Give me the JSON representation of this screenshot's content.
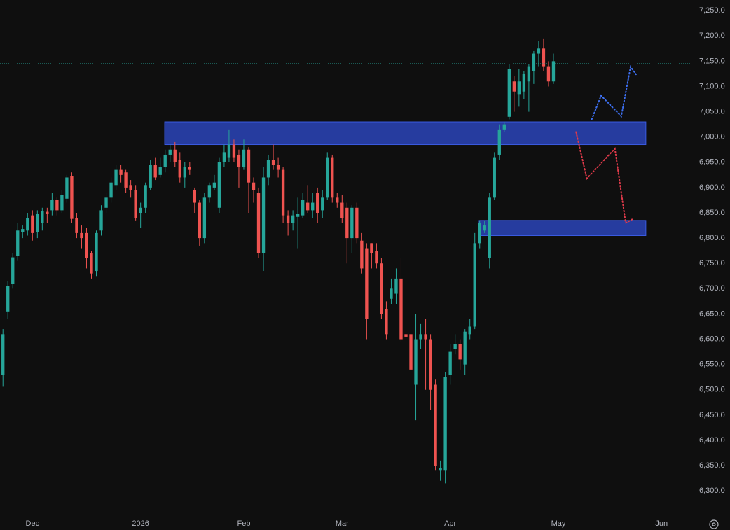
{
  "chart_data": {
    "type": "candlestick",
    "up_color": "#26a69a",
    "down_color": "#ef5350",
    "open": [
      6530,
      6655,
      6710,
      6765,
      6812,
      6815,
      6845,
      6812,
      6830,
      6852,
      6855,
      6875,
      6855,
      6878,
      6922,
      6840,
      6810,
      6810,
      6770,
      6735,
      6815,
      6860,
      6880,
      6905,
      6935,
      6930,
      6905,
      6895,
      6850,
      6860,
      6900,
      6945,
      6925,
      6940,
      6965,
      6975,
      6955,
      6920,
      6940,
      6895,
      6870,
      6800,
      6880,
      6900,
      6860,
      6950,
      6960,
      6985,
      6965,
      6940,
      6975,
      6910,
      6890,
      6770,
      6920,
      6955,
      6945,
      6935,
      6845,
      6830,
      6842,
      6845,
      6870,
      6855,
      6890,
      6855,
      6880,
      6960,
      6880,
      6870,
      6860,
      6800,
      6860,
      6795,
      6780,
      6790,
      6775,
      6750,
      6660,
      6680,
      6690,
      6720,
      6610,
      6610,
      6510,
      6600,
      6610,
      6600,
      6510,
      6340,
      6340,
      6530,
      6580,
      6590,
      6550,
      6610,
      6625,
      6790,
      6815,
      6760,
      6880,
      6965,
      7015,
      7040,
      7110,
      7085,
      7090,
      7110,
      7130,
      7165,
      7175,
      7140,
      7110
    ],
    "high": [
      6620,
      6715,
      6770,
      6830,
      6825,
      6850,
      6855,
      6855,
      6860,
      6860,
      6890,
      6880,
      6895,
      6925,
      6930,
      6850,
      6825,
      6820,
      6775,
      6815,
      6865,
      6890,
      6920,
      6945,
      6945,
      6935,
      6915,
      6905,
      6870,
      6910,
      6955,
      6960,
      6960,
      6975,
      6985,
      6990,
      6970,
      6950,
      6950,
      6900,
      6875,
      6890,
      6910,
      6925,
      6960,
      6985,
      7015,
      6995,
      6975,
      6995,
      6980,
      6920,
      6900,
      6940,
      6965,
      6985,
      6960,
      6940,
      6855,
      6855,
      6880,
      6890,
      6905,
      6890,
      6900,
      6895,
      6970,
      6965,
      6890,
      6885,
      6870,
      6865,
      6870,
      6810,
      6790,
      6790,
      6790,
      6760,
      6675,
      6720,
      6740,
      6760,
      6625,
      6620,
      6650,
      6630,
      6640,
      6610,
      6520,
      6360,
      6535,
      6590,
      6610,
      6600,
      6620,
      6640,
      6810,
      6835,
      6835,
      6890,
      6970,
      7025,
      7030,
      7145,
      7120,
      7135,
      7130,
      7145,
      7170,
      7190,
      7195,
      7150,
      7165
    ],
    "low": [
      6506,
      6640,
      6700,
      6755,
      6800,
      6805,
      6795,
      6800,
      6815,
      6830,
      6845,
      6845,
      6850,
      6870,
      6830,
      6800,
      6780,
      6740,
      6720,
      6725,
      6805,
      6850,
      6870,
      6895,
      6910,
      6890,
      6880,
      6835,
      6820,
      6850,
      6895,
      6915,
      6920,
      6930,
      6950,
      6940,
      6910,
      6900,
      6925,
      6850,
      6785,
      6790,
      6870,
      6895,
      6850,
      6940,
      6950,
      6950,
      6900,
      6935,
      6850,
      6870,
      6760,
      6735,
      6905,
      6935,
      6920,
      6830,
      6805,
      6815,
      6780,
      6840,
      6850,
      6840,
      6830,
      6840,
      6875,
      6870,
      6860,
      6830,
      6750,
      6770,
      6790,
      6730,
      6600,
      6740,
      6740,
      6640,
      6600,
      6670,
      6670,
      6595,
      6580,
      6510,
      6440,
      6580,
      6500,
      6460,
      6340,
      6320,
      6315,
      6510,
      6570,
      6540,
      6530,
      6600,
      6620,
      6780,
      6810,
      6740,
      6875,
      6955,
      7010,
      7035,
      7050,
      7060,
      7075,
      7050,
      7105,
      7140,
      7130,
      7100,
      7105
    ],
    "close": [
      6610,
      6705,
      6762,
      6815,
      6818,
      6840,
      6810,
      6848,
      6853,
      6848,
      6875,
      6855,
      6885,
      6920,
      6838,
      6810,
      6800,
      6760,
      6730,
      6810,
      6855,
      6880,
      6910,
      6935,
      6925,
      6900,
      6895,
      6840,
      6860,
      6905,
      6945,
      6920,
      6940,
      6965,
      6975,
      6950,
      6920,
      6940,
      6935,
      6870,
      6800,
      6880,
      6905,
      6910,
      6950,
      6970,
      6985,
      6960,
      6940,
      6975,
      6910,
      6895,
      6770,
      6920,
      6955,
      6945,
      6935,
      6845,
      6830,
      6845,
      6848,
      6875,
      6855,
      6870,
      6850,
      6880,
      6960,
      6880,
      6870,
      6840,
      6800,
      6860,
      6800,
      6740,
      6640,
      6770,
      6750,
      6650,
      6610,
      6700,
      6720,
      6600,
      6605,
      6540,
      6600,
      6610,
      6600,
      6500,
      6350,
      6345,
      6525,
      6575,
      6590,
      6560,
      6615,
      6625,
      6790,
      6830,
      6825,
      6880,
      6960,
      7015,
      7025,
      7135,
      7090,
      7110,
      7125,
      7140,
      7165,
      7175,
      7140,
      7110,
      7150
    ],
    "xlim": [
      -0.6,
      139.8
    ],
    "xticks": [
      {
        "value": 6,
        "label": "Dec"
      },
      {
        "value": 28,
        "label": "2026"
      },
      {
        "value": 49,
        "label": "Feb"
      },
      {
        "value": 69,
        "label": "Mar"
      },
      {
        "value": 91,
        "label": "Apr"
      },
      {
        "value": 113,
        "label": "May"
      },
      {
        "value": 134,
        "label": "Jun"
      }
    ],
    "ylim": [
      6249,
      7271
    ],
    "yticks": [
      {
        "value": 6300,
        "label": "6,300.0"
      },
      {
        "value": 6350,
        "label": "6,350.0"
      },
      {
        "value": 6400,
        "label": "6,400.0"
      },
      {
        "value": 6450,
        "label": "6,450.0"
      },
      {
        "value": 6500,
        "label": "6,500.0"
      },
      {
        "value": 6550,
        "label": "6,550.0"
      },
      {
        "value": 6600,
        "label": "6,600.0"
      },
      {
        "value": 6650,
        "label": "6,650.0"
      },
      {
        "value": 6700,
        "label": "6,700.0"
      },
      {
        "value": 6750,
        "label": "6,750.0"
      },
      {
        "value": 6800,
        "label": "6,800.0"
      },
      {
        "value": 6850,
        "label": "6,850.0"
      },
      {
        "value": 6900,
        "label": "6,900.0"
      },
      {
        "value": 6950,
        "label": "6,950.0"
      },
      {
        "value": 7000,
        "label": "7,000.0"
      },
      {
        "value": 7050,
        "label": "7,050.0"
      },
      {
        "value": 7100,
        "label": "7,100.0"
      },
      {
        "value": 7150,
        "label": "7,150.0"
      },
      {
        "value": 7200,
        "label": "7,200.0"
      },
      {
        "value": 7250,
        "label": "7,250.0"
      }
    ],
    "grid": true,
    "price_line": {
      "value": 7145,
      "color": "#26a69a"
    },
    "zones": [
      {
        "x": [
          32.9,
          130.8
        ],
        "y": [
          6985,
          7030
        ],
        "color": "#2a44b8"
      },
      {
        "x": [
          96.9,
          130.8
        ],
        "y": [
          6805,
          6835
        ],
        "color": "#2a44b8"
      }
    ],
    "projections": [
      {
        "color": "#3d6ff0",
        "x": [
          119.8,
          121.7,
          125.8,
          127.7,
          128.8
        ],
        "y": [
          7035,
          7082,
          7041,
          7139,
          7124
        ]
      },
      {
        "color": "#e03a4a",
        "x": [
          116.6,
          118.8,
          124.5,
          126.7,
          128.0
        ],
        "y": [
          7010,
          6918,
          6977,
          6830,
          6837
        ]
      }
    ]
  }
}
